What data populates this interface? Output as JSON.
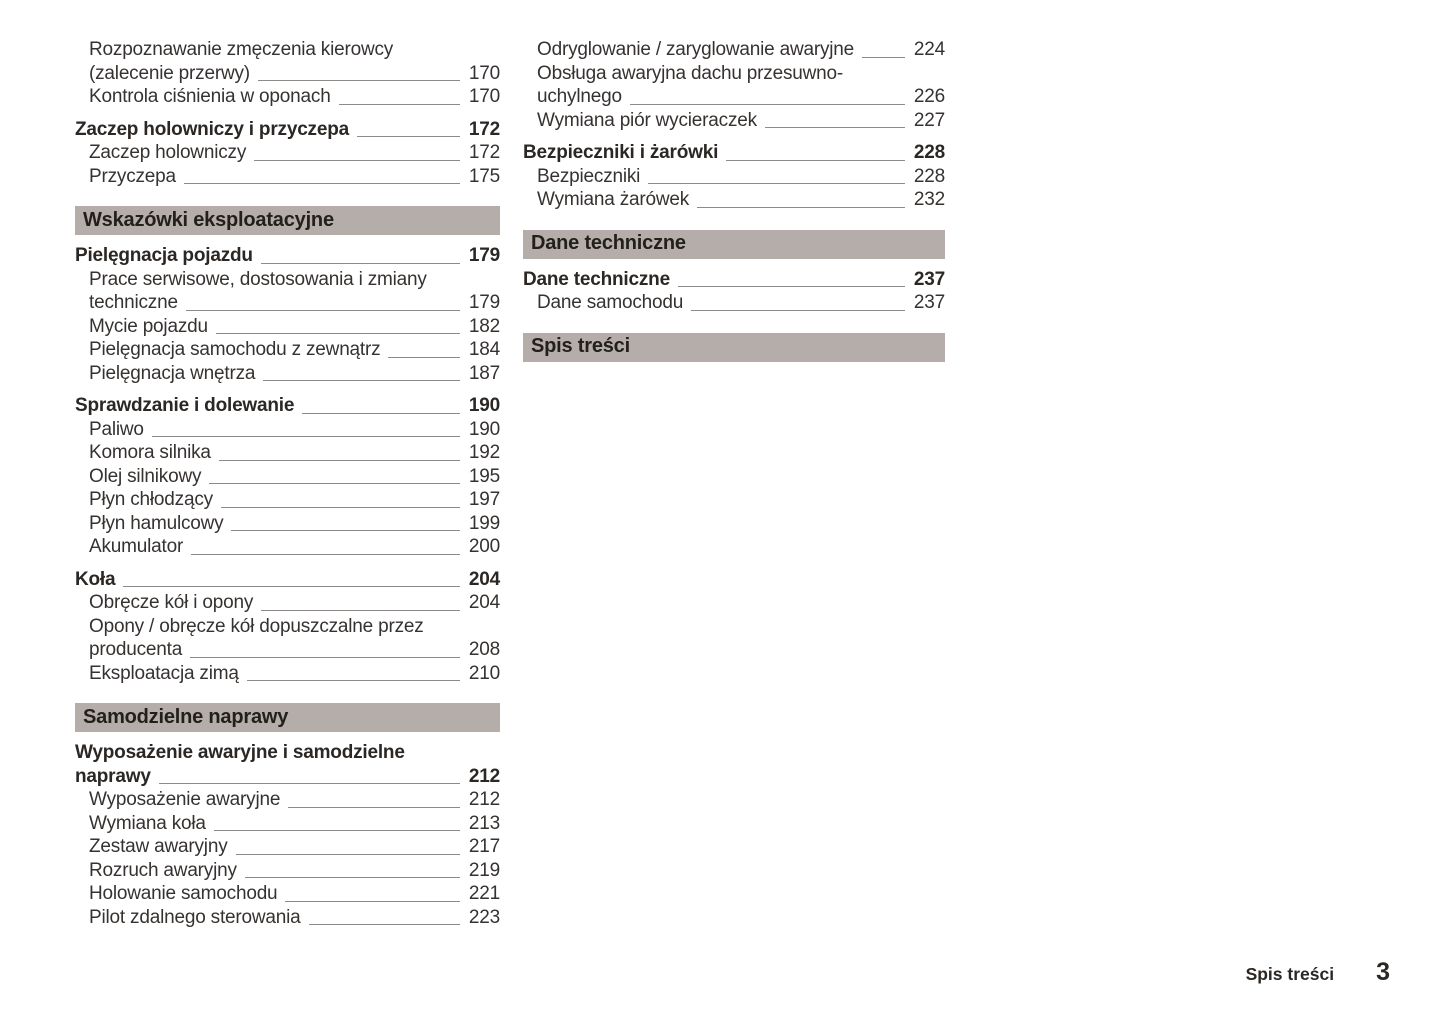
{
  "footer": {
    "label": "Spis treści",
    "page_number": "3"
  },
  "colors": {
    "band_background": "#b4ada9",
    "text": "#363230",
    "leader_line": "#8d8a88"
  },
  "columns": [
    {
      "blocks": [
        {
          "type": "section",
          "lines": [
            "Rozpoznawanie zmęczenia kierowcy",
            "(zalecenie przerwy)"
          ],
          "page": "170"
        },
        {
          "type": "section",
          "lines": [
            "Kontrola ciśnienia w oponach"
          ],
          "page": "170"
        },
        {
          "type": "chapter",
          "lines": [
            "Zaczep holowniczy i przyczepa"
          ],
          "page": "172"
        },
        {
          "type": "section",
          "lines": [
            "Zaczep holowniczy"
          ],
          "page": "172"
        },
        {
          "type": "section",
          "lines": [
            "Przyczepa"
          ],
          "page": "175"
        },
        {
          "type": "band",
          "text": "Wskazówki eksploatacyjne"
        },
        {
          "type": "chapter",
          "lines": [
            "Pielęgnacja pojazdu"
          ],
          "page": "179"
        },
        {
          "type": "section",
          "lines": [
            "Prace serwisowe, dostosowania i zmiany",
            "techniczne"
          ],
          "page": "179"
        },
        {
          "type": "section",
          "lines": [
            "Mycie pojazdu"
          ],
          "page": "182"
        },
        {
          "type": "section",
          "lines": [
            "Pielęgnacja samochodu z zewnątrz"
          ],
          "page": "184"
        },
        {
          "type": "section",
          "lines": [
            "Pielęgnacja wnętrza"
          ],
          "page": "187"
        },
        {
          "type": "chapter",
          "lines": [
            "Sprawdzanie i dolewanie"
          ],
          "page": "190"
        },
        {
          "type": "section",
          "lines": [
            "Paliwo"
          ],
          "page": "190"
        },
        {
          "type": "section",
          "lines": [
            "Komora silnika"
          ],
          "page": "192"
        },
        {
          "type": "section",
          "lines": [
            "Olej silnikowy"
          ],
          "page": "195"
        },
        {
          "type": "section",
          "lines": [
            "Płyn chłodzący"
          ],
          "page": "197"
        },
        {
          "type": "section",
          "lines": [
            "Płyn hamulcowy"
          ],
          "page": "199"
        },
        {
          "type": "section",
          "lines": [
            "Akumulator"
          ],
          "page": "200"
        },
        {
          "type": "chapter",
          "lines": [
            "Koła"
          ],
          "page": "204"
        },
        {
          "type": "section",
          "lines": [
            "Obręcze kół i opony"
          ],
          "page": "204"
        },
        {
          "type": "section",
          "lines": [
            "Opony / obręcze kół dopuszczalne przez",
            "producenta"
          ],
          "page": "208"
        },
        {
          "type": "section",
          "lines": [
            "Eksploatacja zimą"
          ],
          "page": "210"
        },
        {
          "type": "band",
          "text": "Samodzielne naprawy"
        },
        {
          "type": "chapter",
          "lines": [
            "Wyposażenie awaryjne i samodzielne",
            "naprawy"
          ],
          "page": "212"
        },
        {
          "type": "section",
          "lines": [
            "Wyposażenie awaryjne"
          ],
          "page": "212"
        },
        {
          "type": "section",
          "lines": [
            "Wymiana koła"
          ],
          "page": "213"
        },
        {
          "type": "section",
          "lines": [
            "Zestaw awaryjny"
          ],
          "page": "217"
        },
        {
          "type": "section",
          "lines": [
            "Rozruch awaryjny"
          ],
          "page": "219"
        },
        {
          "type": "section",
          "lines": [
            "Holowanie samochodu"
          ],
          "page": "221"
        },
        {
          "type": "section",
          "lines": [
            "Pilot zdalnego sterowania"
          ],
          "page": "223"
        }
      ]
    },
    {
      "blocks": [
        {
          "type": "section",
          "lines": [
            "Odryglowanie / zaryglowanie awaryjne"
          ],
          "page": "224"
        },
        {
          "type": "section",
          "lines": [
            "Obsługa awaryjna dachu przesuwno-",
            "uchylnego"
          ],
          "page": "226"
        },
        {
          "type": "section",
          "lines": [
            "Wymiana piór wycieraczek"
          ],
          "page": "227"
        },
        {
          "type": "chapter",
          "lines": [
            "Bezpieczniki i żarówki"
          ],
          "page": "228"
        },
        {
          "type": "section",
          "lines": [
            "Bezpieczniki"
          ],
          "page": "228"
        },
        {
          "type": "section",
          "lines": [
            "Wymiana żarówek"
          ],
          "page": "232"
        },
        {
          "type": "band",
          "text": "Dane techniczne"
        },
        {
          "type": "chapter",
          "lines": [
            "Dane techniczne"
          ],
          "page": "237"
        },
        {
          "type": "section",
          "lines": [
            "Dane samochodu"
          ],
          "page": "237"
        },
        {
          "type": "band",
          "text": "Spis treści"
        }
      ]
    }
  ]
}
